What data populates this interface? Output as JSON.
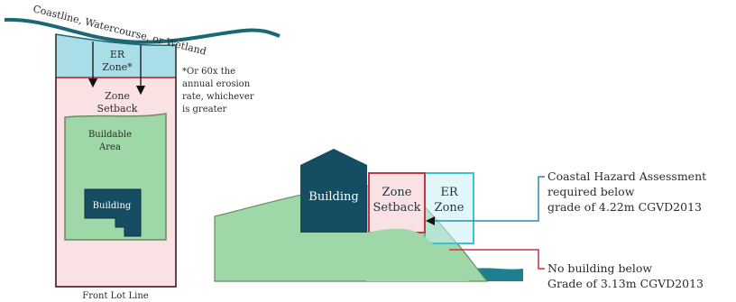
{
  "colors": {
    "water_fill": "#a9dde8",
    "water_stroke": "#1a6775",
    "setback_fill": "#f9e1e4",
    "setback_stroke": "#c83448",
    "buildable_fill": "#9ed7a8",
    "buildable_stroke": "#6e8a5e",
    "building_fill": "#154e63",
    "er_zone_stroke": "#3ec0d3",
    "hazard_line": "#2a8fa8",
    "nobuild_line": "#c83448"
  },
  "plan": {
    "shoreline_label": "Coastline, Watercourse, or Wetland",
    "er_zone_label_line1": "ER",
    "er_zone_label_line2": "Zone*",
    "zone_setback_line1": "Zone",
    "zone_setback_line2": "Setback",
    "buildable_line1": "Buildable",
    "buildable_line2": "Area",
    "building_label": "Building",
    "footnote_line1": "*Or 60x the",
    "footnote_line2": "annual erosion",
    "footnote_line3": "rate, whichever",
    "footnote_line4": "is greater",
    "front_lot_line": "Front Lot Line"
  },
  "section": {
    "building_label": "Building",
    "zone_setback_line1": "Zone",
    "zone_setback_line2": "Setback",
    "er_zone_line1": "ER",
    "er_zone_line2": "Zone",
    "hazard_line1": "Coastal Hazard Assessment",
    "hazard_line2": "required below",
    "hazard_line3": "grade of 4.22m CGVD2013",
    "nobuild_line1": "No building below",
    "nobuild_line2": "Grade of 3.13m CGVD2013"
  }
}
